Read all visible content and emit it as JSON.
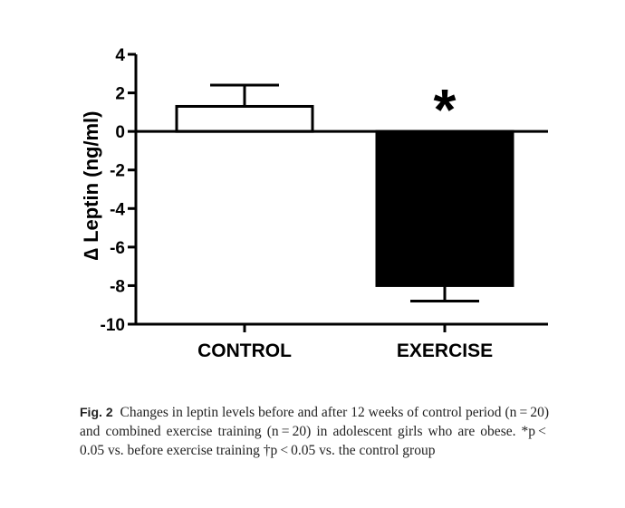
{
  "chart_data": {
    "type": "bar",
    "categories": [
      "CONTROL",
      "EXERCISE"
    ],
    "values": [
      1.3,
      -8.0
    ],
    "error_upper": [
      2.4,
      -8.8
    ],
    "fill_colors": [
      "#ffffff",
      "#000000"
    ],
    "ylabel": "∆ Leptin (ng/ml)",
    "ylim": [
      -10,
      4
    ],
    "yticks": [
      "4",
      "2",
      "0",
      "-2",
      "-4",
      "-6",
      "-8",
      "-10"
    ],
    "annotations": [
      {
        "category": "EXERCISE",
        "text": "*"
      }
    ],
    "grid": false
  },
  "caption": {
    "label": "Fig. 2",
    "text": "Changes in leptin levels before and after 12 weeks of control period (n = 20) and combined exercise training (n = 20) in adolescent girls who are obese. *p < 0.05 vs. before exercise training †p < 0.05 vs. the control group"
  }
}
